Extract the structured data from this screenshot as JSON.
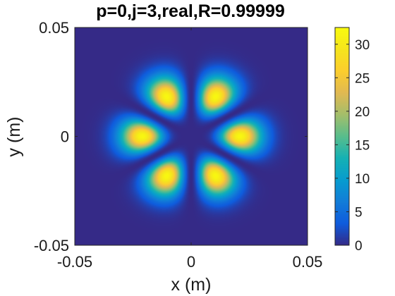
{
  "chart_data": {
    "type": "heatmap",
    "title": "p=0,j=3,real,R=0.99999",
    "xlabel": "x (m)",
    "ylabel": "y (m)",
    "xlim": [
      -0.05,
      0.05
    ],
    "ylim": [
      -0.05,
      0.05
    ],
    "x_ticks": [
      {
        "value": -0.05,
        "label": "-0.05"
      },
      {
        "value": 0,
        "label": "0"
      },
      {
        "value": 0.05,
        "label": "0.05"
      }
    ],
    "y_ticks": [
      {
        "value": -0.05,
        "label": "-0.05"
      },
      {
        "value": 0,
        "label": "0"
      },
      {
        "value": 0.05,
        "label": "0.05"
      }
    ],
    "colorbar": {
      "colormap": "parula",
      "range": [
        0,
        32.5
      ],
      "ticks": [
        {
          "value": 0,
          "label": "0"
        },
        {
          "value": 5,
          "label": "5"
        },
        {
          "value": 10,
          "label": "10"
        },
        {
          "value": 15,
          "label": "15"
        },
        {
          "value": 20,
          "label": "20"
        },
        {
          "value": 25,
          "label": "25"
        },
        {
          "value": 30,
          "label": "30"
        }
      ]
    },
    "pattern": {
      "lobes": 6,
      "lobe_peak_value": 32,
      "lobe_peak_radius": 0.021,
      "lobe_center_angles_deg": [
        0,
        60,
        120,
        180,
        240,
        300
      ]
    },
    "grid": false
  }
}
